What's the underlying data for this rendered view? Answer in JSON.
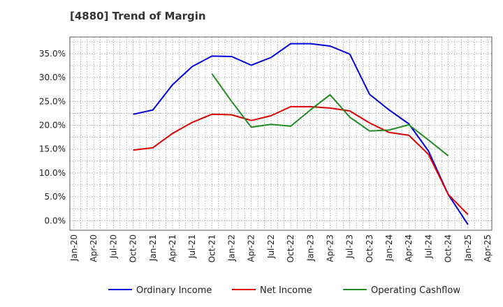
{
  "chart_data": {
    "type": "line",
    "title": "[4880]  Trend of Margin",
    "xlabel": "",
    "ylabel": "",
    "x_ticks": [
      "Jan-20",
      "Apr-20",
      "Jul-20",
      "Oct-20",
      "Jan-21",
      "Apr-21",
      "Jul-21",
      "Oct-21",
      "Jan-22",
      "Apr-22",
      "Jul-22",
      "Oct-22",
      "Jan-23",
      "Apr-23",
      "Jul-23",
      "Oct-23",
      "Jan-24",
      "Apr-24",
      "Jul-24",
      "Oct-24",
      "Jan-25",
      "Apr-25"
    ],
    "y_ticks": [
      "0.0%",
      "5.0%",
      "10.0%",
      "15.0%",
      "20.0%",
      "25.0%",
      "30.0%",
      "35.0%"
    ],
    "ylim": [
      -2,
      38.5
    ],
    "grid": true,
    "legend_position": "bottom",
    "series": [
      {
        "name": "Ordinary Income",
        "color": "#0000dd",
        "x": [
          "Oct-20",
          "Jan-21",
          "Apr-21",
          "Jul-21",
          "Oct-21",
          "Jan-22",
          "Apr-22",
          "Jul-22",
          "Oct-22",
          "Jan-23",
          "Apr-23",
          "Jul-23",
          "Oct-23",
          "Jan-24",
          "Apr-24",
          "Jul-24",
          "Oct-24",
          "Jan-25"
        ],
        "values": [
          22.3,
          23.2,
          28.5,
          32.3,
          34.5,
          34.4,
          32.6,
          34.2,
          37.1,
          37.1,
          36.6,
          34.9,
          26.5,
          23.2,
          20.3,
          14.6,
          5.5,
          -0.8
        ]
      },
      {
        "name": "Net Income",
        "color": "#dd0000",
        "x": [
          "Oct-20",
          "Jan-21",
          "Apr-21",
          "Jul-21",
          "Oct-21",
          "Jan-22",
          "Apr-22",
          "Jul-22",
          "Oct-22",
          "Jan-23",
          "Apr-23",
          "Jul-23",
          "Oct-23",
          "Jan-24",
          "Apr-24",
          "Jul-24",
          "Oct-24",
          "Jan-25"
        ],
        "values": [
          14.8,
          15.3,
          18.3,
          20.6,
          22.3,
          22.2,
          21.0,
          22.0,
          23.9,
          23.9,
          23.6,
          23.0,
          20.5,
          18.5,
          17.9,
          13.9,
          5.5,
          1.3
        ]
      },
      {
        "name": "Operating Cashflow",
        "color": "#228B22",
        "x": [
          "Oct-21",
          "Jan-22",
          "Apr-22",
          "Jul-22",
          "Oct-22",
          "Jan-23",
          "Apr-23",
          "Jul-23",
          "Oct-23",
          "Jan-24",
          "Apr-24",
          "Jul-24",
          "Oct-24"
        ],
        "values": [
          30.8,
          25.0,
          19.6,
          20.2,
          19.8,
          23.2,
          26.4,
          21.7,
          18.8,
          19.0,
          20.1,
          16.9,
          13.6
        ]
      }
    ]
  }
}
